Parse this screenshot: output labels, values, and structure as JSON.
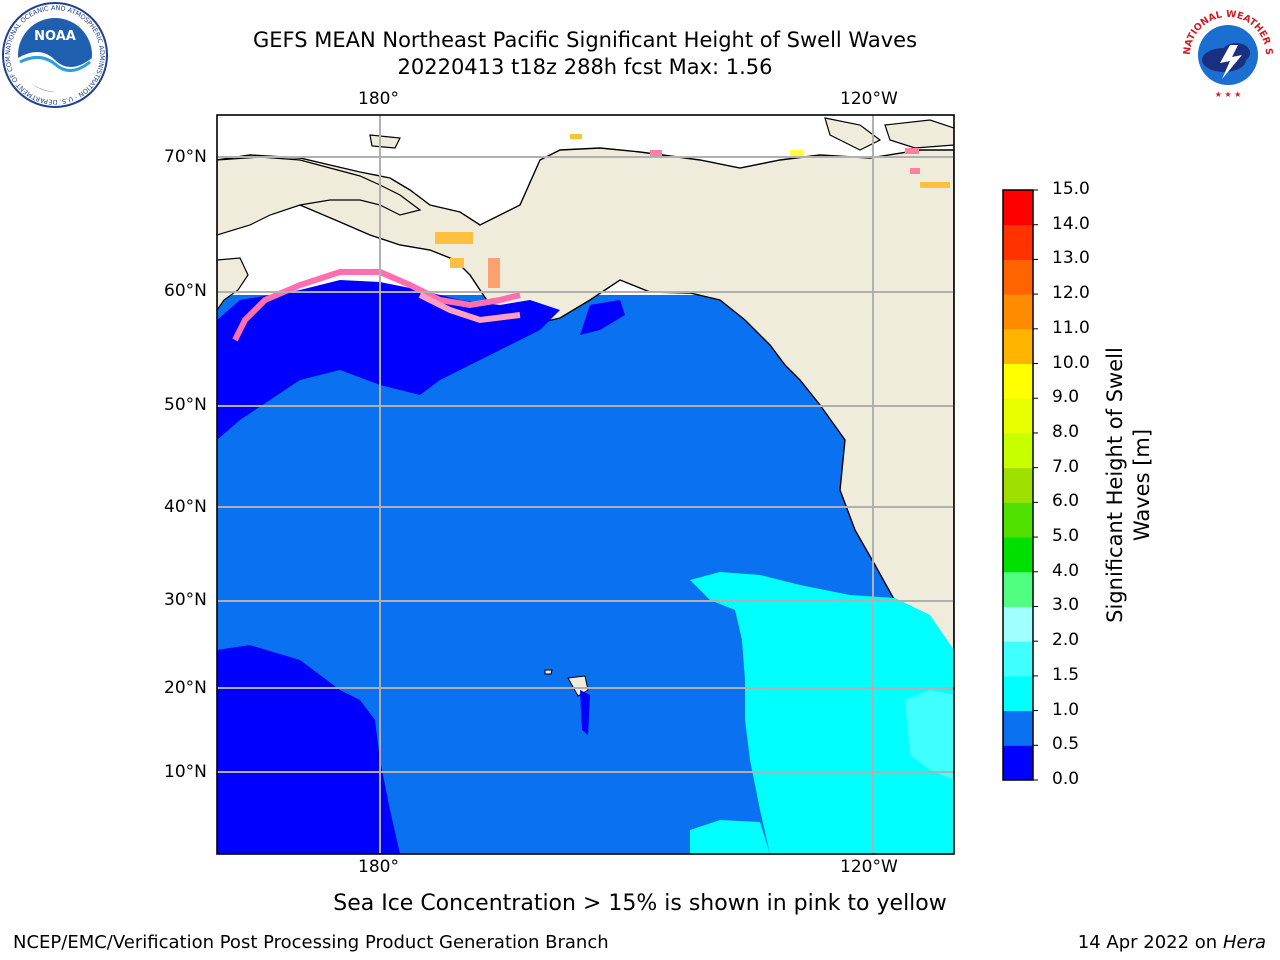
{
  "title_line1": "GEFS MEAN Northeast Pacific Significant Height of Swell Waves",
  "title_line2": "20220413 t18z 288h fcst   Max: 1.56",
  "map": {
    "lon_labels_top": [
      "180°",
      "120°W"
    ],
    "lon_labels_bottom": [
      "180°",
      "120°W"
    ],
    "lat_labels": [
      "70°N",
      "60°N",
      "50°N",
      "40°N",
      "30°N",
      "20°N",
      "10°N"
    ]
  },
  "colorbar": {
    "label_line1": "Significant Height of Swell",
    "label_line2": "Waves [m]",
    "ticks": [
      "0.0",
      "0.5",
      "1.0",
      "1.5",
      "2.0",
      "3.0",
      "4.0",
      "5.0",
      "6.0",
      "7.0",
      "8.0",
      "9.0",
      "10.0",
      "11.0",
      "12.0",
      "13.0",
      "14.0",
      "15.0"
    ],
    "colors": [
      "#0000ff",
      "#0a72f0",
      "#00ffff",
      "#40ffff",
      "#a0ffff",
      "#50ff80",
      "#00e000",
      "#50e000",
      "#a0e000",
      "#c8ff00",
      "#e8ff00",
      "#ffff00",
      "#ffb400",
      "#ff8c00",
      "#ff6400",
      "#ff3200",
      "#ff0000"
    ]
  },
  "note": "Sea Ice Concentration > 15% is shown in pink to yellow",
  "footer_left": "NCEP/EMC/Verification Post Processing Product Generation Branch",
  "footer_right_prefix": "14 Apr 2022 on ",
  "footer_right_host": "Hera",
  "logos": {
    "noaa_text": "NOAA",
    "noaa_ring": "NATIONAL OCEANIC AND ATMOSPHERIC ADMINISTRATION · U.S. DEPARTMENT OF COMMERCE",
    "nws_ring": "NATIONAL WEATHER SERVICE"
  }
}
